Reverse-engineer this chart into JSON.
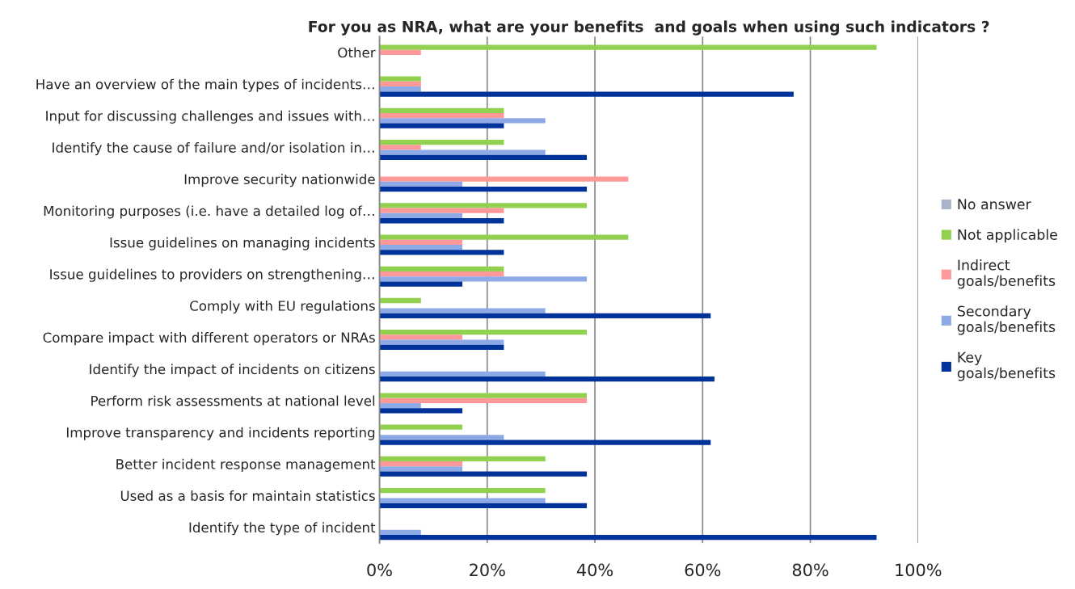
{
  "chart_data": {
    "type": "bar",
    "orientation": "horizontal",
    "title": "For you as NRA, what are your benefits  and goals when using such indicators ?",
    "categories": [
      "Other",
      "Have an overview of the main types of incidents…",
      "Input for discussing challenges and issues with…",
      "Identify the cause of failure and/or isolation in…",
      "Improve security nationwide",
      "Monitoring purposes (i.e. have a detailed log of…",
      "Issue guidelines on managing incidents",
      "Issue guidelines to providers on strengthening…",
      "Comply with EU regulations",
      "Compare impact with different operators or NRAs",
      "Identify the impact of incidents on citizens",
      "Perform risk assessments at national level",
      "Improve transparency and incidents reporting",
      "Better incident response management",
      "Used as a basis for maintain statistics",
      "Identify the type of incident"
    ],
    "series": [
      {
        "name": "No answer",
        "color": "#a9b3c9",
        "values": [
          null,
          null,
          null,
          null,
          null,
          null,
          null,
          null,
          null,
          null,
          null,
          null,
          null,
          null,
          null,
          null
        ]
      },
      {
        "name": "Not applicable",
        "color": "#92d050",
        "values": [
          92.3,
          7.7,
          23.1,
          23.1,
          null,
          38.5,
          46.2,
          23.1,
          7.7,
          38.5,
          null,
          38.5,
          15.4,
          30.8,
          30.8,
          null
        ]
      },
      {
        "name": "Indirect\ngoals/benefits",
        "color": "#ff9999",
        "values": [
          7.7,
          7.7,
          23.1,
          7.7,
          46.2,
          23.1,
          15.4,
          23.1,
          null,
          15.4,
          null,
          38.5,
          null,
          15.4,
          null,
          null
        ]
      },
      {
        "name": "Secondary\ngoals/benefits",
        "color": "#8eaae6",
        "values": [
          null,
          7.7,
          30.8,
          30.8,
          15.4,
          15.4,
          15.4,
          38.5,
          30.8,
          23.1,
          30.8,
          7.7,
          23.1,
          15.4,
          30.8,
          7.7
        ]
      },
      {
        "name": "Key\ngoals/benefits",
        "color": "#003399",
        "values": [
          null,
          76.9,
          23.1,
          38.5,
          38.5,
          23.1,
          23.1,
          15.4,
          61.5,
          23.1,
          62.2,
          15.4,
          61.5,
          38.5,
          38.5,
          92.3
        ]
      }
    ],
    "xlim": [
      0,
      100
    ],
    "xticks": [
      {
        "value": 0,
        "label": "0%"
      },
      {
        "value": 20,
        "label": "20%"
      },
      {
        "value": 40,
        "label": "40%"
      },
      {
        "value": 60,
        "label": "60%"
      },
      {
        "value": 80,
        "label": "80%"
      },
      {
        "value": 100,
        "label": "100%"
      }
    ],
    "grid": "x",
    "legend": "right"
  }
}
